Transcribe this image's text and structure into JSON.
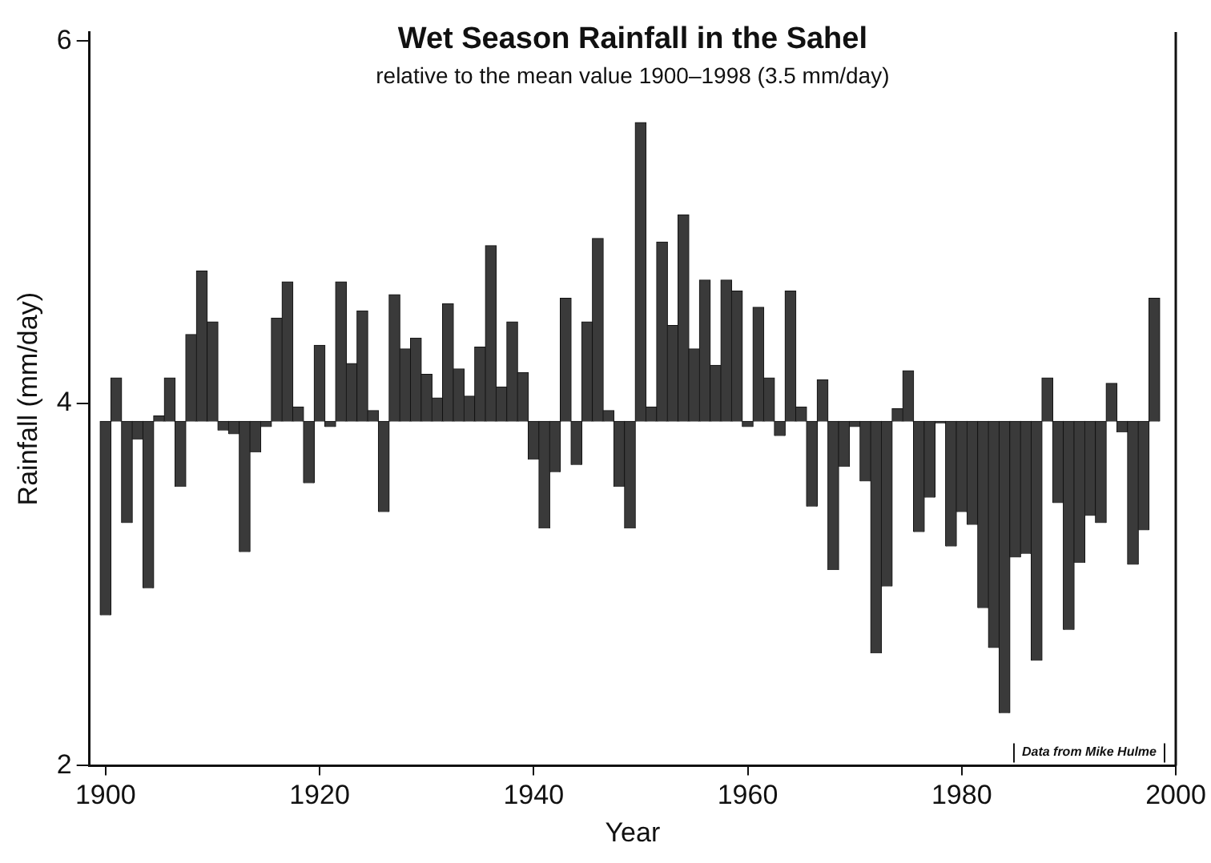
{
  "chart_data": {
    "type": "bar",
    "title": "Wet Season Rainfall in the Sahel",
    "subtitle": "relative to the mean value 1900–1998 (3.5 mm/day)",
    "xlabel": "Year",
    "ylabel": "Rainfall (mm/day)",
    "annotations": [
      "Data from Mike Hulme"
    ],
    "x": [
      1900,
      1901,
      1902,
      1903,
      1904,
      1905,
      1906,
      1907,
      1908,
      1909,
      1910,
      1911,
      1912,
      1913,
      1914,
      1915,
      1916,
      1917,
      1918,
      1919,
      1920,
      1921,
      1922,
      1923,
      1924,
      1925,
      1926,
      1927,
      1928,
      1929,
      1930,
      1931,
      1932,
      1933,
      1934,
      1935,
      1936,
      1937,
      1938,
      1939,
      1940,
      1941,
      1942,
      1943,
      1944,
      1945,
      1946,
      1947,
      1948,
      1949,
      1950,
      1951,
      1952,
      1953,
      1954,
      1955,
      1956,
      1957,
      1958,
      1959,
      1960,
      1961,
      1962,
      1963,
      1964,
      1965,
      1966,
      1967,
      1968,
      1969,
      1970,
      1971,
      1972,
      1973,
      1974,
      1975,
      1976,
      1977,
      1978,
      1979,
      1980,
      1981,
      1982,
      1983,
      1984,
      1985,
      1986,
      1987,
      1988,
      1989,
      1990,
      1991,
      1992,
      1993,
      1994,
      1995,
      1996,
      1997,
      1998
    ],
    "values": [
      -1.07,
      0.24,
      -0.56,
      -0.1,
      -0.92,
      0.03,
      0.24,
      -0.36,
      0.48,
      0.83,
      0.55,
      -0.05,
      -0.07,
      -0.72,
      -0.17,
      -0.03,
      0.57,
      0.77,
      0.08,
      -0.34,
      0.42,
      -0.03,
      0.77,
      0.32,
      0.61,
      0.06,
      -0.5,
      0.7,
      0.4,
      0.46,
      0.26,
      0.13,
      0.65,
      0.29,
      0.14,
      0.41,
      0.97,
      0.19,
      0.55,
      0.27,
      -0.21,
      -0.59,
      -0.28,
      0.68,
      -0.24,
      0.55,
      1.01,
      0.06,
      -0.36,
      -0.59,
      1.65,
      0.08,
      0.99,
      0.53,
      1.14,
      0.4,
      0.78,
      0.31,
      0.78,
      0.72,
      -0.03,
      0.63,
      0.24,
      -0.08,
      0.72,
      0.08,
      -0.47,
      0.23,
      -0.82,
      -0.25,
      -0.03,
      -0.33,
      -1.28,
      -0.91,
      0.07,
      0.28,
      -0.61,
      -0.42,
      -0.01,
      -0.69,
      -0.5,
      -0.57,
      -1.03,
      -1.25,
      -1.61,
      -0.75,
      -0.73,
      -1.32,
      0.24,
      -0.45,
      -1.15,
      -0.78,
      -0.52,
      -0.56,
      0.21,
      -0.06,
      -0.79,
      -0.6,
      0.68
    ],
    "base": [
      3.9,
      3.9,
      3.9,
      3.9,
      3.9,
      3.9,
      3.9,
      3.9,
      3.9,
      3.9,
      3.9,
      3.9,
      3.9,
      3.9,
      3.9,
      3.9,
      3.9,
      3.9,
      3.9,
      3.9,
      3.9,
      3.9,
      3.9,
      3.9,
      3.9,
      3.9,
      3.9,
      3.9,
      3.9,
      3.9,
      3.9,
      3.9,
      3.9,
      3.9,
      3.9,
      3.9,
      3.9,
      3.9,
      3.9,
      3.9,
      3.9,
      3.9,
      3.9,
      3.9,
      3.9,
      3.9,
      3.9,
      3.9,
      3.9,
      3.9,
      3.9,
      3.9,
      3.9,
      3.9,
      3.9,
      3.9,
      3.9,
      3.9,
      3.9,
      3.9,
      3.9,
      3.9,
      3.9,
      3.9,
      3.9,
      3.9,
      3.9,
      3.9,
      3.9,
      3.9,
      3.9,
      3.9,
      3.9,
      3.9,
      3.9,
      3.9,
      3.9,
      3.9,
      3.9,
      3.9,
      3.9,
      3.9,
      3.9,
      3.9,
      3.9,
      3.9,
      3.9,
      3.9,
      3.9,
      3.9,
      3.9,
      3.9,
      3.9,
      3.9,
      3.9,
      3.9,
      3.9,
      3.9,
      3.9
    ],
    "color": "#3a3a3a",
    "xlim": [
      1898.5,
      2000
    ],
    "xticks": [
      1900,
      1920,
      1940,
      1960,
      1980,
      2000
    ],
    "ylim": [
      2,
      6.05
    ],
    "yticks": [
      2,
      4,
      6
    ],
    "grid": false,
    "legend": false
  }
}
